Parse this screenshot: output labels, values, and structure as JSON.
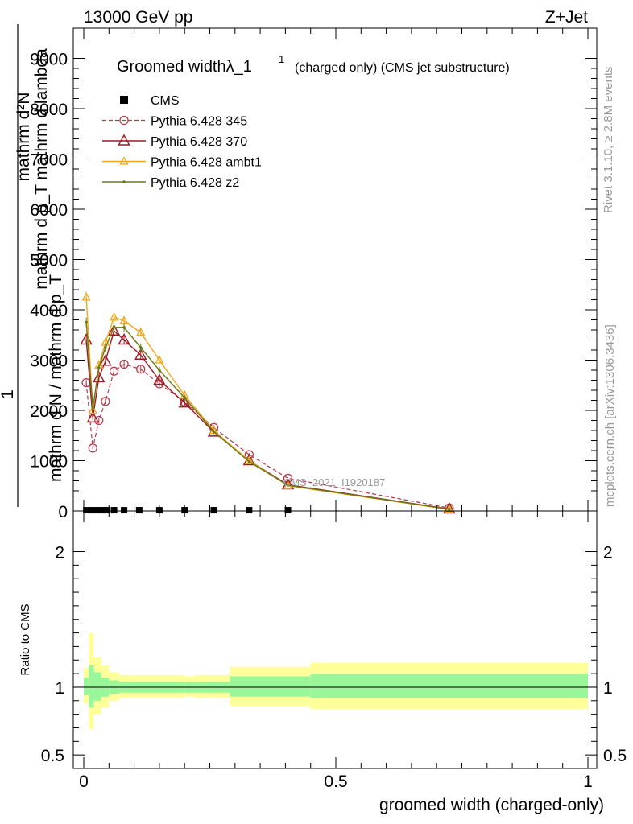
{
  "header": {
    "left": "13000 GeV pp",
    "right": "Z+Jet"
  },
  "side_labels": {
    "rivet": "Rivet 3.1.10, ≥ 2.8M events",
    "mcplots": "mcplots.cern.ch [arXiv:1306.3436]"
  },
  "watermark": "CMS_2021_I1920187",
  "colors": {
    "cms": "#000000",
    "p345": "#b23a4c",
    "p370": "#9b1b24",
    "ambt1": "#f0a81c",
    "z2": "#6b7a14",
    "band_stat": "#99f799",
    "band_total": "#ffff99"
  },
  "chart_data": [
    {
      "type": "line",
      "title_main": "Groomed widthλ_1",
      "title_sup": "1",
      "title_rest": "(charged only) (CMS jet substructure)",
      "ylabel_top": "mathrm d²N",
      "ylabel_top2": "mathrm d p_T mathrm d lambda",
      "ylabel_one": "1",
      "ylabel_bottom": "mathrm d N / mathrm d p_T",
      "xlim": [
        0,
        1
      ],
      "ylim": [
        0,
        9600
      ],
      "yticks": [
        0,
        1000,
        2000,
        3000,
        4000,
        5000,
        6000,
        7000,
        8000,
        9000
      ],
      "ytick_labels": [
        "0",
        "1000",
        "2000",
        "3000",
        "4000",
        "5000",
        "6000",
        "7000",
        "8000",
        "9000"
      ],
      "legend": [
        "CMS",
        "Pythia 6.428 345",
        "Pythia 6.428 370",
        "Pythia 6.428 ambt1",
        "Pythia 6.428 z2"
      ],
      "cms_x": [
        0.005,
        0.015,
        0.025,
        0.035,
        0.045,
        0.06,
        0.08,
        0.11,
        0.15,
        0.2,
        0.258,
        0.328,
        0.405
      ],
      "cms_y": [
        15,
        15,
        15,
        15,
        15,
        15,
        15,
        15,
        15,
        15,
        15,
        15,
        15
      ],
      "series": [
        {
          "name": "Pythia 6.428 345",
          "key": "p345",
          "x": [
            0.005,
            0.018,
            0.03,
            0.043,
            0.06,
            0.08,
            0.113,
            0.15,
            0.2,
            0.258,
            0.328,
            0.405,
            0.725
          ],
          "y": [
            2550,
            1250,
            1800,
            2180,
            2780,
            2920,
            2820,
            2530,
            2170,
            1660,
            1120,
            650,
            60
          ]
        },
        {
          "name": "Pythia 6.428 370",
          "key": "p370",
          "x": [
            0.005,
            0.018,
            0.03,
            0.043,
            0.06,
            0.08,
            0.113,
            0.15,
            0.2,
            0.258,
            0.328,
            0.405,
            0.725
          ],
          "y": [
            3400,
            1850,
            2650,
            2980,
            3580,
            3400,
            3100,
            2600,
            2150,
            1570,
            1000,
            520,
            40
          ]
        },
        {
          "name": "Pythia 6.428 ambt1",
          "key": "ambt1",
          "x": [
            0.005,
            0.018,
            0.03,
            0.043,
            0.06,
            0.08,
            0.113,
            0.15,
            0.2,
            0.258,
            0.328,
            0.405,
            0.725
          ],
          "y": [
            4250,
            2000,
            2900,
            3350,
            3850,
            3780,
            3550,
            3000,
            2300,
            1600,
            1000,
            500,
            30
          ]
        },
        {
          "name": "Pythia 6.428 z2",
          "key": "z2",
          "x": [
            0.005,
            0.018,
            0.03,
            0.043,
            0.06,
            0.08,
            0.113,
            0.15,
            0.2,
            0.258,
            0.328,
            0.405,
            0.725
          ],
          "y": [
            3750,
            2050,
            2850,
            3250,
            3650,
            3650,
            3250,
            2800,
            2250,
            1580,
            980,
            510,
            35
          ]
        }
      ]
    },
    {
      "type": "area",
      "ylabel": "Ratio to CMS",
      "xlabel": "groomed width (charged-only)",
      "xlim": [
        0,
        1
      ],
      "ylim": [
        0.4,
        2.3
      ],
      "yticks": [
        0.5,
        1,
        2
      ],
      "ytick_labels": [
        "0.5",
        "1",
        "2"
      ],
      "xticks": [
        0,
        0.5,
        1
      ],
      "xtick_labels": [
        "0",
        "0.5",
        "1"
      ],
      "bins": [
        {
          "lo": 0.0,
          "hi": 0.01,
          "stat_lo": 0.94,
          "stat_hi": 1.07,
          "tot_lo": 0.88,
          "tot_hi": 1.14
        },
        {
          "lo": 0.01,
          "hi": 0.02,
          "stat_lo": 0.85,
          "stat_hi": 1.16,
          "tot_lo": 0.69,
          "tot_hi": 1.4
        },
        {
          "lo": 0.02,
          "hi": 0.035,
          "stat_lo": 0.9,
          "stat_hi": 1.11,
          "tot_lo": 0.8,
          "tot_hi": 1.22
        },
        {
          "lo": 0.035,
          "hi": 0.05,
          "stat_lo": 0.93,
          "stat_hi": 1.07,
          "tot_lo": 0.85,
          "tot_hi": 1.16
        },
        {
          "lo": 0.05,
          "hi": 0.07,
          "stat_lo": 0.95,
          "stat_hi": 1.05,
          "tot_lo": 0.9,
          "tot_hi": 1.11
        },
        {
          "lo": 0.07,
          "hi": 0.2,
          "stat_lo": 0.96,
          "stat_hi": 1.04,
          "tot_lo": 0.92,
          "tot_hi": 1.09
        },
        {
          "lo": 0.2,
          "hi": 0.22,
          "stat_lo": 0.96,
          "stat_hi": 1.04,
          "tot_lo": 0.93,
          "tot_hi": 1.08
        },
        {
          "lo": 0.22,
          "hi": 0.29,
          "stat_lo": 0.96,
          "stat_hi": 1.04,
          "tot_lo": 0.92,
          "tot_hi": 1.09
        },
        {
          "lo": 0.29,
          "hi": 0.45,
          "stat_lo": 0.93,
          "stat_hi": 1.08,
          "tot_lo": 0.86,
          "tot_hi": 1.15
        },
        {
          "lo": 0.45,
          "hi": 1.0,
          "stat_lo": 0.92,
          "stat_hi": 1.1,
          "tot_lo": 0.84,
          "tot_hi": 1.18
        }
      ]
    }
  ]
}
